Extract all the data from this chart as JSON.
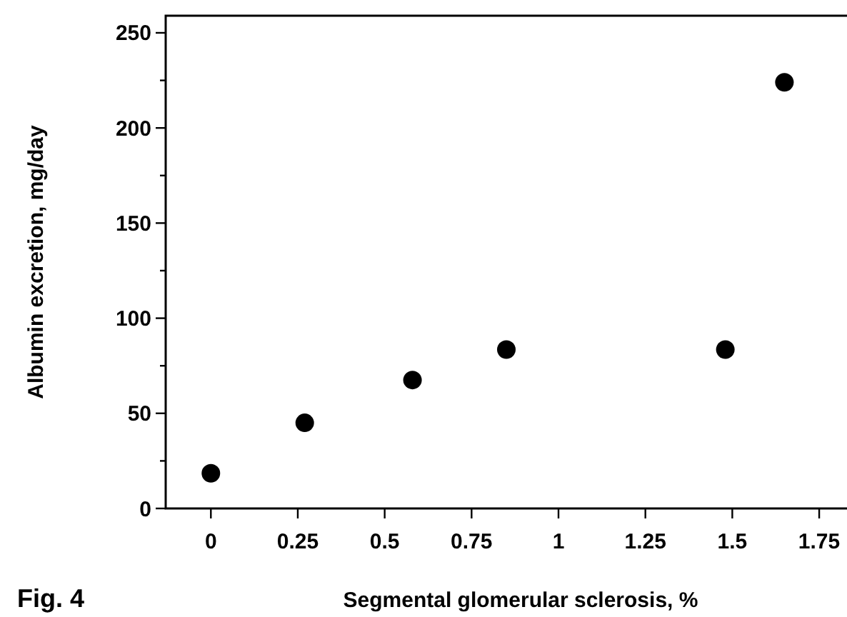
{
  "chart_data": {
    "type": "scatter",
    "xlabel": "Segmental glomerular sclerosis, %",
    "ylabel": "Albumin excretion, mg/day",
    "annotations": [
      "Fig. 4"
    ],
    "x": [
      0,
      0.27,
      0.58,
      0.85,
      1.48,
      1.65
    ],
    "values": [
      18.5,
      45,
      67.5,
      83.5,
      83.5,
      224
    ],
    "color": "#000000",
    "marker": "circle",
    "xlim": [
      -0.13,
      1.83
    ],
    "xticks": [
      0,
      0.25,
      0.5,
      0.75,
      1,
      1.25,
      1.5,
      1.75
    ],
    "ylim": [
      0,
      259
    ],
    "yticks": [
      0,
      {
        "value": 25,
        "label": null
      },
      50,
      {
        "value": 75,
        "label": null
      },
      100,
      {
        "value": 125,
        "label": null
      },
      150,
      {
        "value": 175,
        "label": null
      },
      200,
      {
        "value": 225,
        "label": null
      },
      250
    ],
    "grid": false
  }
}
